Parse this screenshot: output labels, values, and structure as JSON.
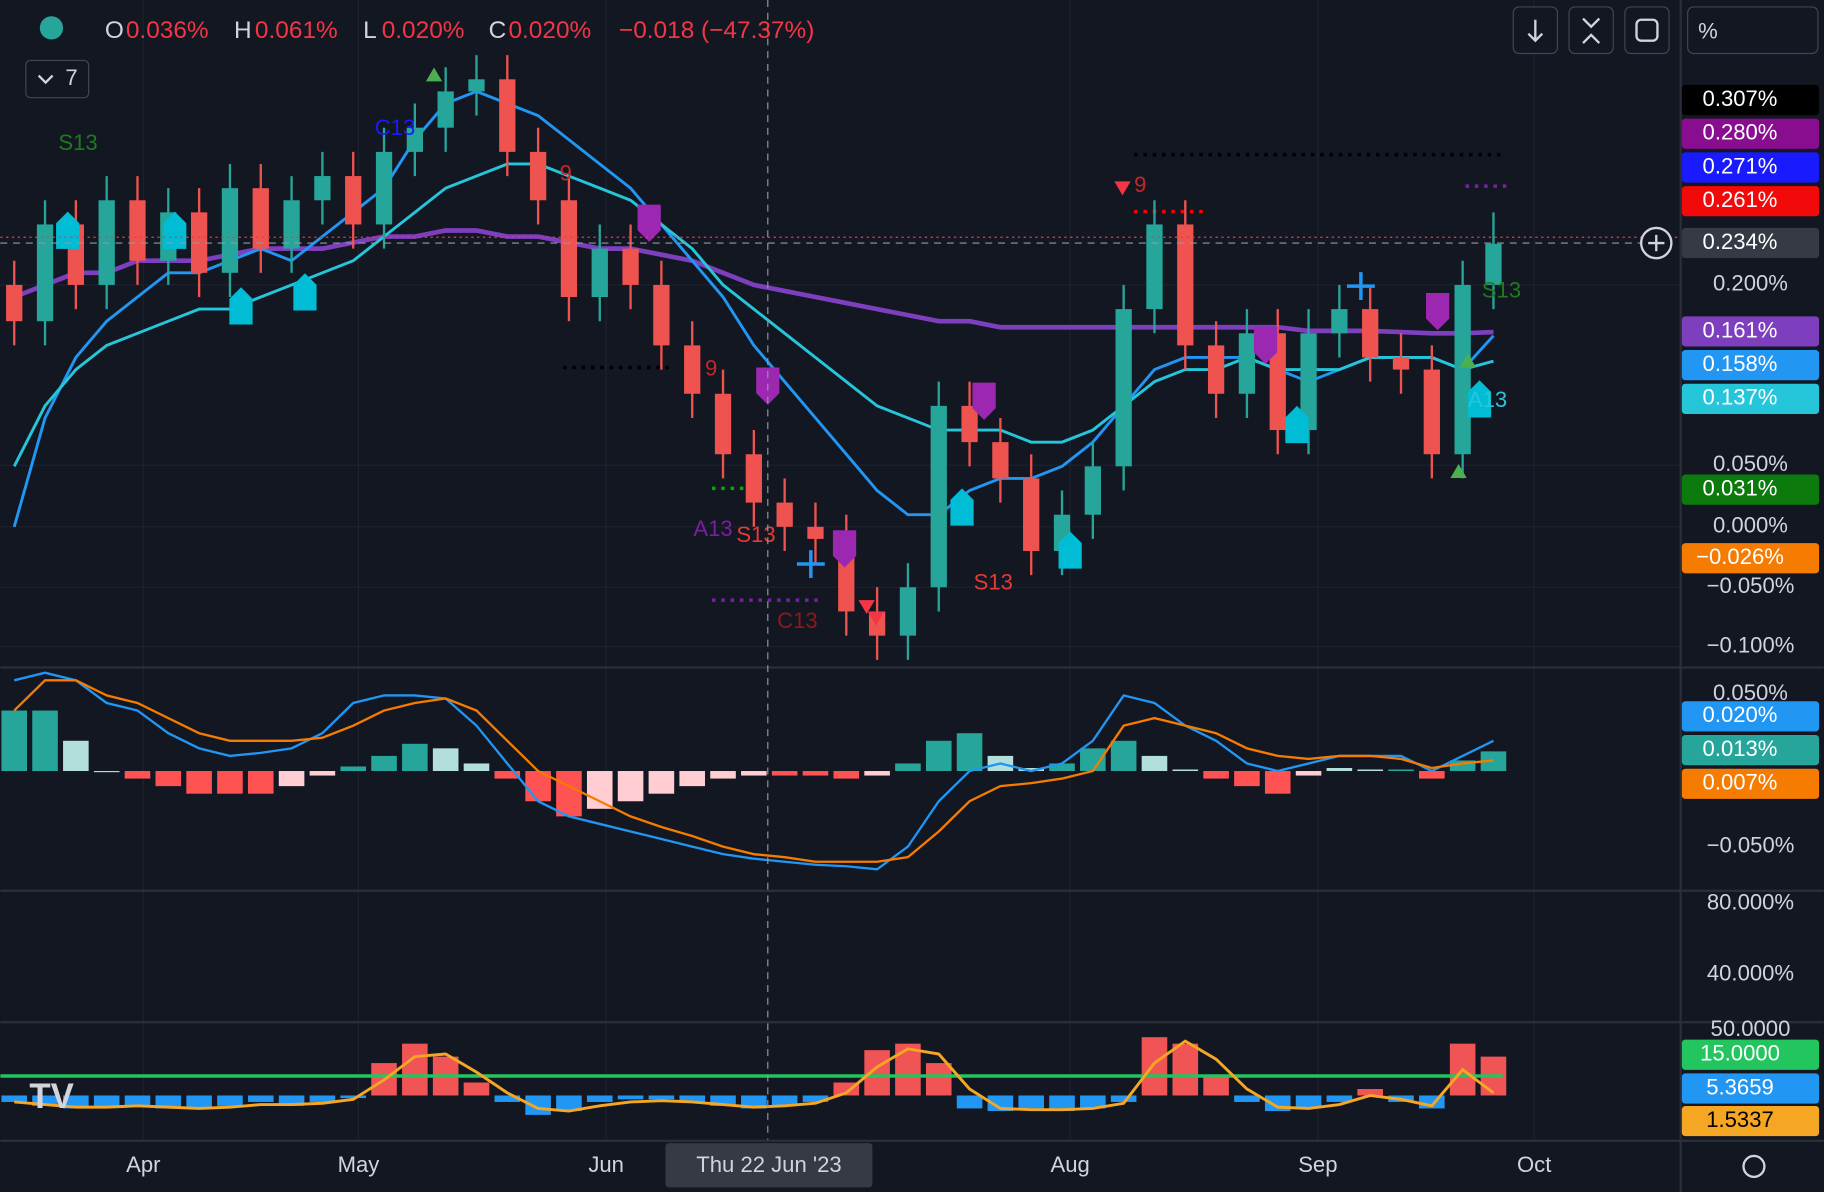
{
  "header": {
    "ohlc": [
      {
        "label": "O",
        "value": "0.036%"
      },
      {
        "label": "H",
        "value": "0.061%"
      },
      {
        "label": "L",
        "value": "0.020%"
      },
      {
        "label": "C",
        "value": "0.020%"
      }
    ],
    "change": "−0.018 (−47.37%)",
    "indicator_count": "7"
  },
  "toolbar": {
    "scale_mode": "%"
  },
  "price_pane": {
    "type": "candlestick",
    "up_color": "#26a69a",
    "down_color": "#ef5350",
    "candles": {
      "open": [
        0.2,
        0.17,
        0.25,
        0.2,
        0.27,
        0.22,
        0.26,
        0.21,
        0.28,
        0.23,
        0.27,
        0.29,
        0.25,
        0.31,
        0.33,
        0.36,
        0.37,
        0.31,
        0.27,
        0.19,
        0.23,
        0.2,
        0.15,
        0.11,
        0.06,
        0.02,
        0.0,
        -0.01,
        -0.07,
        -0.09,
        -0.05,
        0.1,
        0.07,
        0.04,
        -0.02,
        0.01,
        0.05,
        0.18,
        0.25,
        0.15,
        0.11,
        0.16,
        0.08,
        0.16,
        0.18,
        0.14,
        0.13,
        0.06,
        0.2
      ],
      "high": [
        0.22,
        0.27,
        0.27,
        0.29,
        0.29,
        0.28,
        0.28,
        0.3,
        0.3,
        0.29,
        0.31,
        0.31,
        0.33,
        0.35,
        0.38,
        0.39,
        0.39,
        0.33,
        0.29,
        0.25,
        0.25,
        0.22,
        0.17,
        0.13,
        0.08,
        0.04,
        0.02,
        0.01,
        -0.05,
        -0.03,
        0.12,
        0.12,
        0.09,
        0.06,
        0.03,
        0.07,
        0.2,
        0.27,
        0.27,
        0.17,
        0.18,
        0.18,
        0.18,
        0.2,
        0.2,
        0.16,
        0.15,
        0.22,
        0.26
      ],
      "low": [
        0.15,
        0.15,
        0.18,
        0.18,
        0.2,
        0.2,
        0.19,
        0.19,
        0.21,
        0.21,
        0.25,
        0.23,
        0.23,
        0.29,
        0.31,
        0.34,
        0.29,
        0.25,
        0.17,
        0.17,
        0.18,
        0.13,
        0.09,
        0.04,
        0.0,
        -0.02,
        -0.03,
        -0.09,
        -0.11,
        -0.11,
        -0.07,
        0.05,
        0.02,
        -0.04,
        -0.04,
        -0.01,
        0.03,
        0.16,
        0.13,
        0.09,
        0.09,
        0.06,
        0.06,
        0.14,
        0.12,
        0.11,
        0.04,
        0.04,
        0.18
      ],
      "close": [
        0.17,
        0.25,
        0.2,
        0.27,
        0.22,
        0.26,
        0.21,
        0.28,
        0.23,
        0.27,
        0.29,
        0.25,
        0.31,
        0.33,
        0.36,
        0.37,
        0.31,
        0.27,
        0.19,
        0.23,
        0.2,
        0.15,
        0.11,
        0.06,
        0.02,
        0.0,
        -0.01,
        -0.07,
        -0.09,
        -0.05,
        0.1,
        0.07,
        0.04,
        -0.02,
        0.01,
        0.05,
        0.18,
        0.25,
        0.15,
        0.11,
        0.16,
        0.08,
        0.16,
        0.18,
        0.14,
        0.13,
        0.06,
        0.2,
        0.234
      ]
    },
    "lines": [
      {
        "color": "#7e3fbf",
        "values": [
          0.19,
          0.2,
          0.21,
          0.21,
          0.22,
          0.22,
          0.22,
          0.225,
          0.23,
          0.23,
          0.23,
          0.235,
          0.24,
          0.24,
          0.245,
          0.245,
          0.24,
          0.24,
          0.235,
          0.23,
          0.23,
          0.225,
          0.22,
          0.21,
          0.2,
          0.195,
          0.19,
          0.185,
          0.18,
          0.175,
          0.17,
          0.17,
          0.165,
          0.165,
          0.165,
          0.165,
          0.165,
          0.165,
          0.165,
          0.165,
          0.165,
          0.165,
          0.162,
          0.162,
          0.162,
          0.161,
          0.16,
          0.16,
          0.161
        ]
      },
      {
        "color": "#2196f3",
        "values": [
          0.0,
          0.09,
          0.14,
          0.17,
          0.19,
          0.21,
          0.21,
          0.22,
          0.23,
          0.22,
          0.24,
          0.26,
          0.28,
          0.32,
          0.35,
          0.36,
          0.35,
          0.34,
          0.32,
          0.3,
          0.28,
          0.25,
          0.22,
          0.19,
          0.15,
          0.12,
          0.09,
          0.06,
          0.03,
          0.01,
          0.01,
          0.03,
          0.04,
          0.04,
          0.05,
          0.07,
          0.1,
          0.13,
          0.14,
          0.14,
          0.14,
          0.13,
          0.12,
          0.13,
          0.14,
          0.14,
          0.14,
          0.13,
          0.158
        ]
      },
      {
        "color": "#26c6da",
        "values": [
          0.05,
          0.1,
          0.13,
          0.15,
          0.16,
          0.17,
          0.18,
          0.18,
          0.19,
          0.2,
          0.21,
          0.22,
          0.24,
          0.26,
          0.28,
          0.29,
          0.3,
          0.3,
          0.29,
          0.28,
          0.27,
          0.25,
          0.23,
          0.2,
          0.18,
          0.16,
          0.14,
          0.12,
          0.1,
          0.09,
          0.08,
          0.08,
          0.08,
          0.07,
          0.07,
          0.08,
          0.1,
          0.12,
          0.13,
          0.13,
          0.14,
          0.13,
          0.13,
          0.13,
          0.14,
          0.14,
          0.14,
          0.13,
          0.137
        ]
      }
    ],
    "axis_labels": [
      "0.200%",
      "0.050%",
      "0.000%",
      "−0.050%",
      "−0.100%"
    ],
    "badges": [
      {
        "label": "0.307%",
        "color": "#000000"
      },
      {
        "label": "0.280%",
        "color": "#880e8f"
      },
      {
        "label": "0.271%",
        "color": "#1a1aff"
      },
      {
        "label": "0.261%",
        "color": "#f20a0a"
      },
      {
        "label": "0.234%",
        "color": "#363a45"
      },
      {
        "label": "0.161%",
        "color": "#7e3fbf"
      },
      {
        "label": "0.158%",
        "color": "#2196f3"
      },
      {
        "label": "0.137%",
        "color": "#26c6da"
      },
      {
        "label": "0.031%",
        "color": "#0c7a0c"
      },
      {
        "label": "−0.026%",
        "color": "#f57c00"
      }
    ],
    "annotations": [
      {
        "text": "S13",
        "color": "#1e7a1e"
      },
      {
        "text": "9",
        "color": "#c62828"
      },
      {
        "text": "9",
        "color": "#c62828"
      },
      {
        "text": "A13",
        "color": "#7b1fa2"
      },
      {
        "text": "S13",
        "color": "#e53935"
      },
      {
        "text": "C13",
        "color": "#8b1a1a"
      },
      {
        "text": "S13",
        "color": "#e53935"
      },
      {
        "text": "9",
        "color": "#c62828"
      },
      {
        "text": "S13",
        "color": "#1e7a1e"
      },
      {
        "text": "A13",
        "color": "#26c6da"
      },
      {
        "text": "C13",
        "color": "#1a1aff"
      }
    ]
  },
  "macd_pane": {
    "histogram": [
      0.04,
      0.04,
      0.02,
      0.0,
      -0.005,
      -0.01,
      -0.015,
      -0.015,
      -0.015,
      -0.01,
      -0.003,
      0.003,
      0.01,
      0.018,
      0.015,
      0.005,
      -0.005,
      -0.02,
      -0.03,
      -0.025,
      -0.02,
      -0.015,
      -0.01,
      -0.005,
      -0.003,
      -0.003,
      -0.003,
      -0.005,
      -0.003,
      0.005,
      0.02,
      0.025,
      0.01,
      0.002,
      0.005,
      0.015,
      0.02,
      0.01,
      0.001,
      -0.005,
      -0.01,
      -0.015,
      -0.003,
      0.002,
      0.001,
      0.001,
      -0.005,
      0.007,
      0.013
    ],
    "macd": {
      "color": "#2196f3",
      "values": [
        0.06,
        0.065,
        0.06,
        0.045,
        0.04,
        0.025,
        0.015,
        0.01,
        0.012,
        0.015,
        0.025,
        0.045,
        0.05,
        0.05,
        0.048,
        0.03,
        0.005,
        -0.02,
        -0.03,
        -0.035,
        -0.04,
        -0.045,
        -0.05,
        -0.055,
        -0.058,
        -0.06,
        -0.062,
        -0.063,
        -0.065,
        -0.05,
        -0.02,
        0.0,
        0.005,
        0.0,
        0.005,
        0.02,
        0.05,
        0.045,
        0.03,
        0.02,
        0.005,
        0.0,
        0.005,
        0.01,
        0.01,
        0.01,
        0.0,
        0.01,
        0.02
      ]
    },
    "signal": {
      "color": "#f57c00",
      "values": [
        0.04,
        0.06,
        0.06,
        0.05,
        0.045,
        0.035,
        0.025,
        0.02,
        0.02,
        0.02,
        0.022,
        0.03,
        0.04,
        0.045,
        0.048,
        0.04,
        0.02,
        0.0,
        -0.01,
        -0.02,
        -0.03,
        -0.037,
        -0.043,
        -0.05,
        -0.055,
        -0.057,
        -0.06,
        -0.06,
        -0.06,
        -0.057,
        -0.04,
        -0.02,
        -0.01,
        -0.008,
        -0.005,
        0.0,
        0.03,
        0.035,
        0.03,
        0.025,
        0.015,
        0.01,
        0.008,
        0.01,
        0.01,
        0.008,
        0.002,
        0.005,
        0.007
      ]
    },
    "axis_labels": [
      "0.050%",
      "−0.050%"
    ],
    "badges": [
      {
        "label": "0.020%",
        "color": "#2196f3"
      },
      {
        "label": "0.013%",
        "color": "#26a69a"
      },
      {
        "label": "0.007%",
        "color": "#f57c00"
      }
    ]
  },
  "pane3": {
    "axis_labels": [
      "80.000%",
      "40.000%"
    ]
  },
  "pane4": {
    "bars": [
      -5,
      -8,
      -10,
      -8,
      -8,
      -10,
      -10,
      -8,
      -5,
      -8,
      -5,
      -2,
      25,
      40,
      30,
      10,
      -5,
      -15,
      -12,
      -5,
      -3,
      -3,
      -5,
      -8,
      -10,
      -8,
      -5,
      10,
      35,
      40,
      25,
      -10,
      -12,
      -10,
      -12,
      -10,
      -5,
      45,
      40,
      15,
      -5,
      -12,
      -10,
      -5,
      5,
      -5,
      -10,
      40,
      30
    ],
    "line": {
      "color": "#f5a623",
      "values": [
        -5,
        -7,
        -9,
        -9,
        -8,
        -9,
        -10,
        -9,
        -7,
        -7,
        -6,
        -3,
        12,
        30,
        32,
        18,
        2,
        -10,
        -12,
        -8,
        -5,
        -4,
        -5,
        -7,
        -9,
        -8,
        -6,
        2,
        22,
        36,
        32,
        5,
        -10,
        -11,
        -11,
        -10,
        -6,
        25,
        42,
        28,
        5,
        -9,
        -10,
        -7,
        0,
        -3,
        -8,
        20,
        2
      ]
    },
    "threshold": 15,
    "threshold_color": "#22c55e",
    "axis_labels": [
      "50.0000"
    ],
    "badges": [
      {
        "label": "15.0000",
        "color": "#22c55e"
      },
      {
        "label": "5.3659",
        "color": "#2196f3"
      },
      {
        "label": "1.5337",
        "color": "#f5a623"
      }
    ]
  },
  "x_axis": {
    "labels": [
      "Apr",
      "May",
      "Jun",
      "Aug",
      "Sep",
      "Oct"
    ],
    "crosshair_label": "Thu 22 Jun '23"
  }
}
